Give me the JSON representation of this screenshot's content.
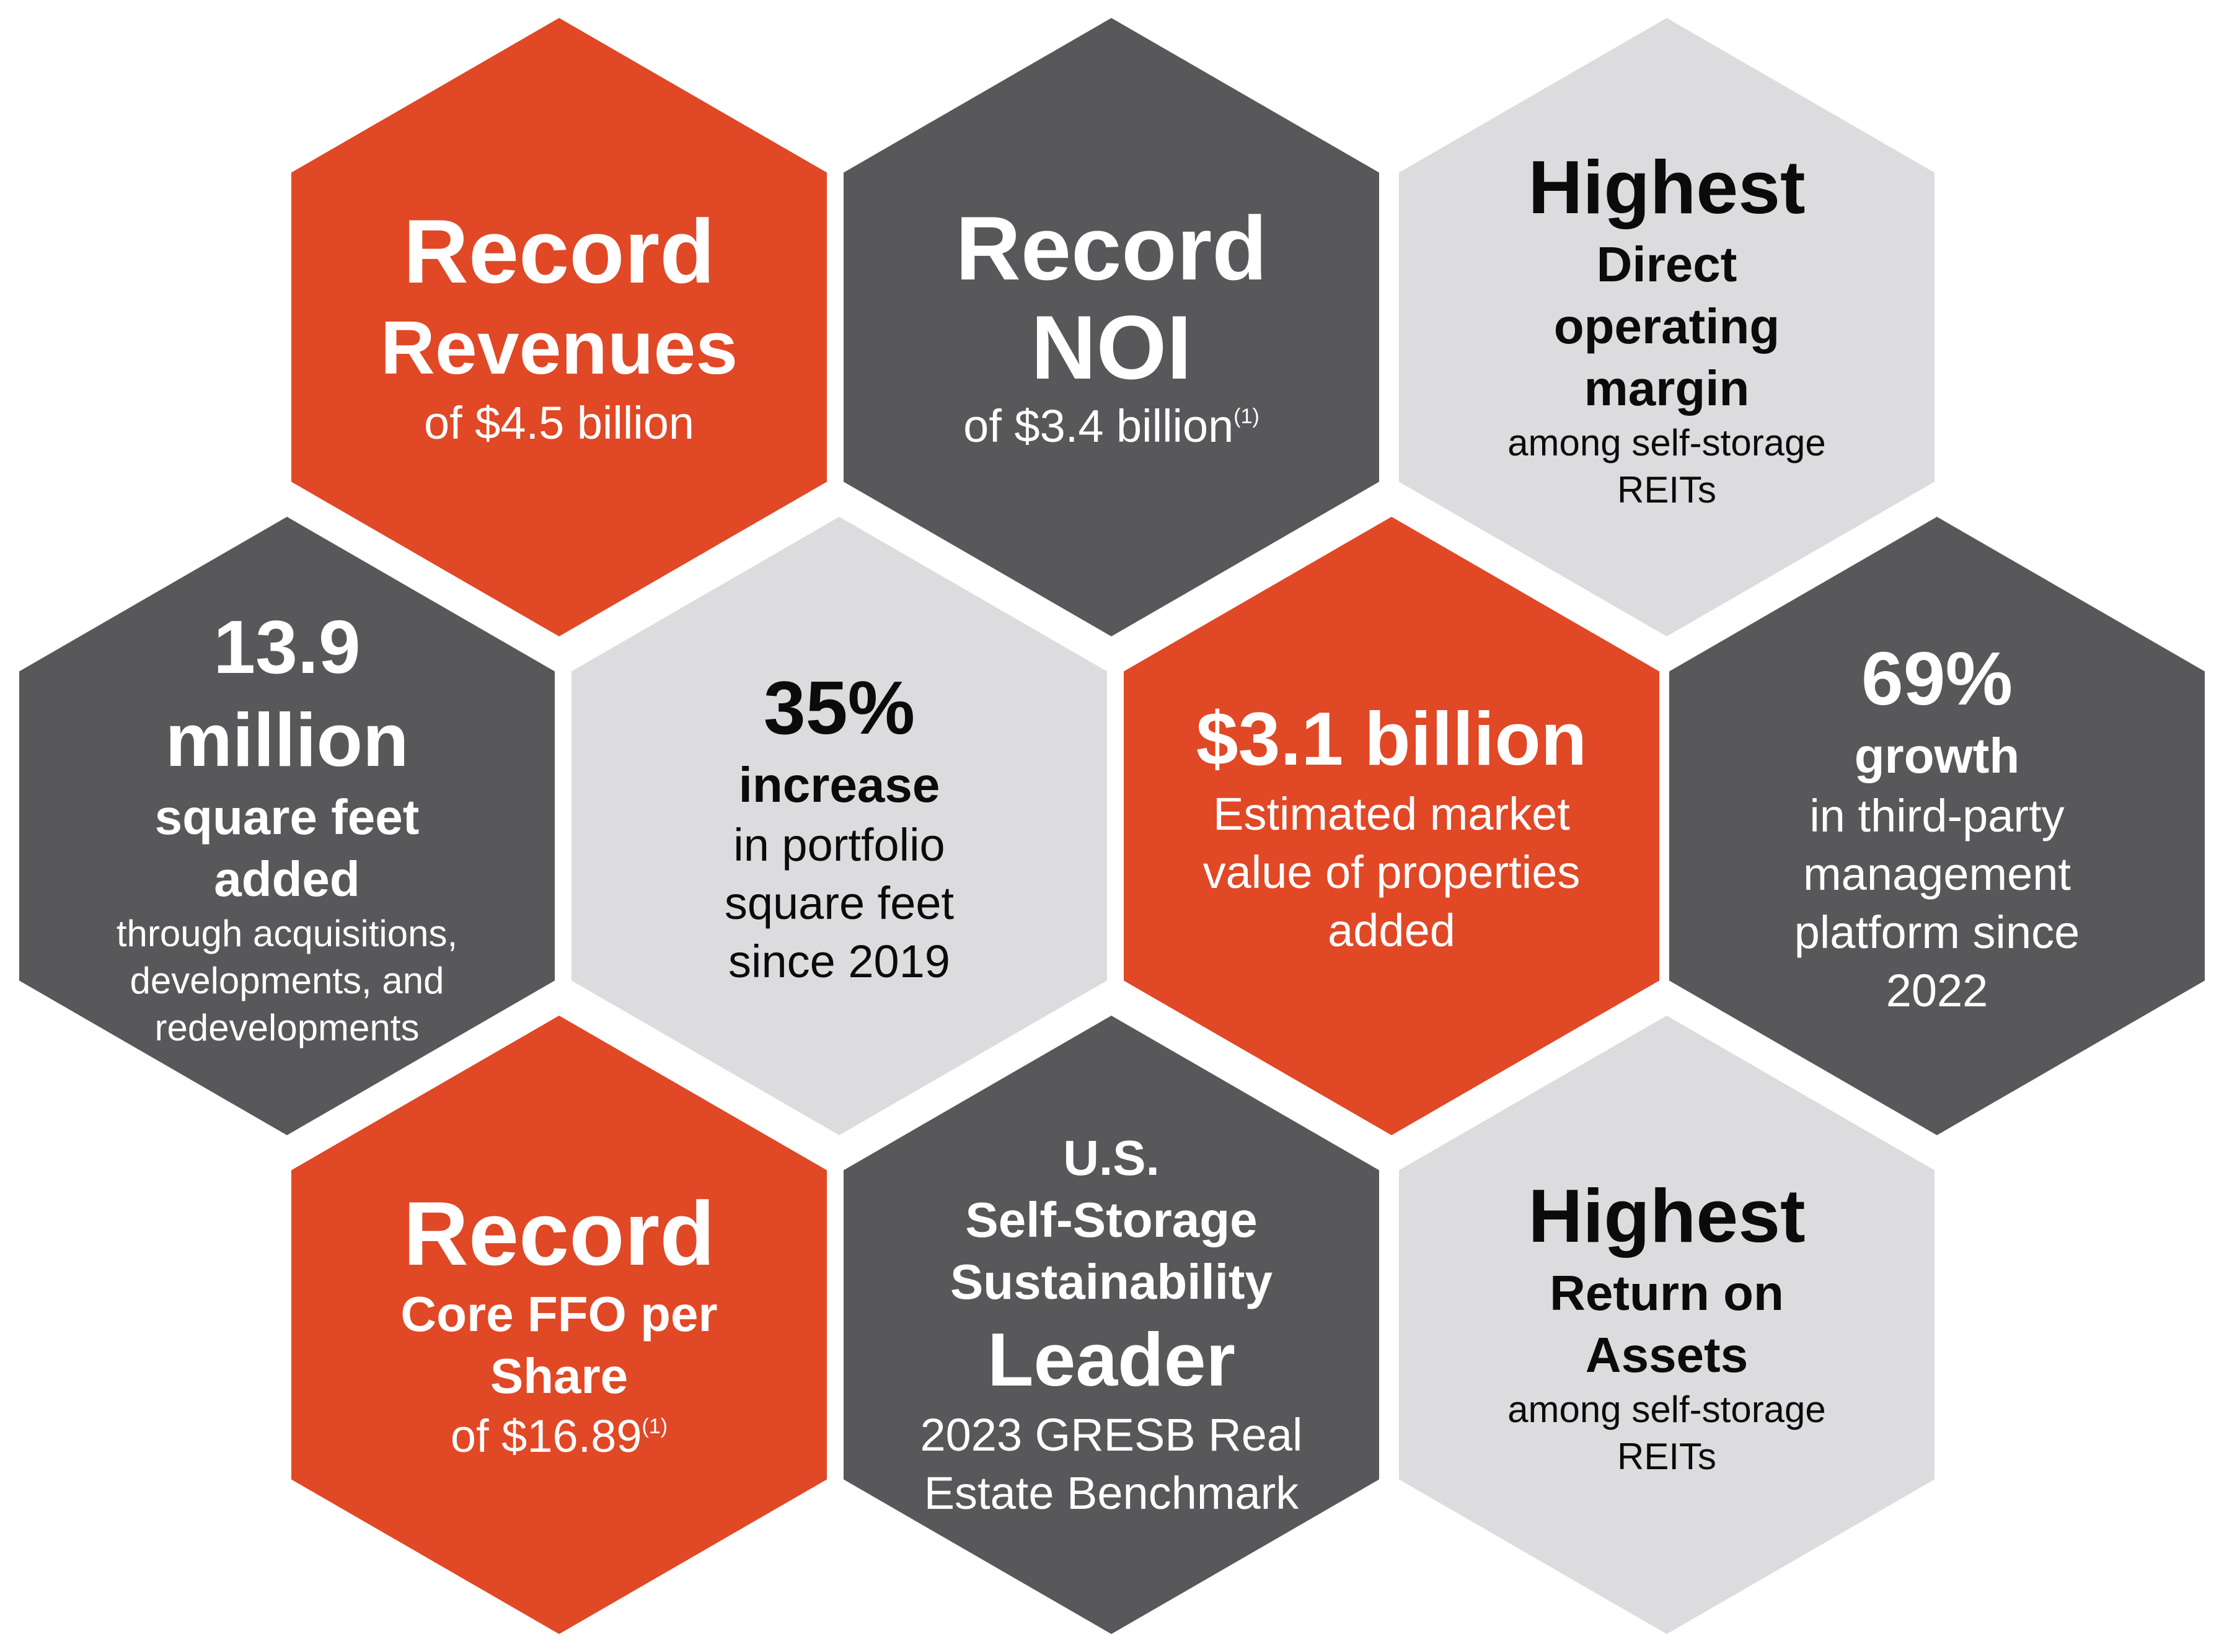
{
  "colors": {
    "orange": "#e04826",
    "dark": "#58585a",
    "light": "#dcdcde"
  },
  "hexagons": [
    {
      "id": "record-revenues",
      "theme": "orange",
      "lines": [
        {
          "text": "Record",
          "size": "xxl"
        },
        {
          "text": "Revenues",
          "size": "xl"
        },
        {
          "text": "of $4.5 billion",
          "size": "md"
        }
      ]
    },
    {
      "id": "record-noi",
      "theme": "dark",
      "lines": [
        {
          "text": "Record",
          "size": "xxl"
        },
        {
          "text": "NOI",
          "size": "xxl"
        },
        {
          "text": "of $3.4 billion",
          "size": "md",
          "footnote": "(1)"
        }
      ]
    },
    {
      "id": "highest-operating-margin",
      "theme": "light",
      "lines": [
        {
          "text": "Highest",
          "size": "xl"
        },
        {
          "text": "Direct",
          "size": "lg"
        },
        {
          "text": "operating",
          "size": "lg"
        },
        {
          "text": "margin",
          "size": "lg"
        },
        {
          "text": "among self-storage",
          "size": "sm"
        },
        {
          "text": "REITs",
          "size": "sm"
        }
      ]
    },
    {
      "id": "square-feet-added",
      "theme": "dark",
      "lines": [
        {
          "text": "13.9",
          "size": "xl"
        },
        {
          "text": "million",
          "size": "xl"
        },
        {
          "text": "square feet",
          "size": "lg"
        },
        {
          "text": "added",
          "size": "lg"
        },
        {
          "text": "through acquisitions,",
          "size": "sm"
        },
        {
          "text": "developments, and",
          "size": "sm"
        },
        {
          "text": "redevelopments",
          "size": "sm"
        }
      ]
    },
    {
      "id": "portfolio-increase",
      "theme": "light",
      "lines": [
        {
          "text": "35%",
          "size": "xl"
        },
        {
          "text": "increase",
          "size": "lg"
        },
        {
          "text": "in portfolio",
          "size": "md"
        },
        {
          "text": "square feet",
          "size": "md"
        },
        {
          "text": "since 2019",
          "size": "md"
        }
      ]
    },
    {
      "id": "market-value-added",
      "theme": "orange",
      "lines": [
        {
          "text": "$3.1 billion",
          "size": "xl"
        },
        {
          "text": "Estimated market",
          "size": "md"
        },
        {
          "text": "value of properties",
          "size": "md"
        },
        {
          "text": "added",
          "size": "md"
        }
      ]
    },
    {
      "id": "third-party-growth",
      "theme": "dark",
      "lines": [
        {
          "text": "69%",
          "size": "xl"
        },
        {
          "text": "growth",
          "size": "lg"
        },
        {
          "text": "in third-party",
          "size": "md"
        },
        {
          "text": "management",
          "size": "md"
        },
        {
          "text": "platform since",
          "size": "md"
        },
        {
          "text": "2022",
          "size": "md"
        }
      ]
    },
    {
      "id": "record-core-ffo",
      "theme": "orange",
      "lines": [
        {
          "text": "Record",
          "size": "xxl"
        },
        {
          "text": "Core FFO per",
          "size": "lg"
        },
        {
          "text": "Share",
          "size": "lg"
        },
        {
          "text": "of $16.89",
          "size": "md",
          "footnote": "(1)"
        }
      ]
    },
    {
      "id": "sustainability-leader",
      "theme": "dark",
      "lines": [
        {
          "text": "U.S.",
          "size": "lg"
        },
        {
          "text": "Self-Storage",
          "size": "lg"
        },
        {
          "text": "Sustainability",
          "size": "lg"
        },
        {
          "text": "Leader",
          "size": "xl"
        },
        {
          "text": "2023 GRESB Real",
          "size": "md"
        },
        {
          "text": "Estate Benchmark",
          "size": "md"
        }
      ]
    },
    {
      "id": "highest-return-on-assets",
      "theme": "light",
      "lines": [
        {
          "text": "Highest",
          "size": "xl"
        },
        {
          "text": "Return on",
          "size": "lg"
        },
        {
          "text": "Assets",
          "size": "lg"
        },
        {
          "text": "among self-storage",
          "size": "sm"
        },
        {
          "text": "REITs",
          "size": "sm"
        }
      ]
    }
  ]
}
